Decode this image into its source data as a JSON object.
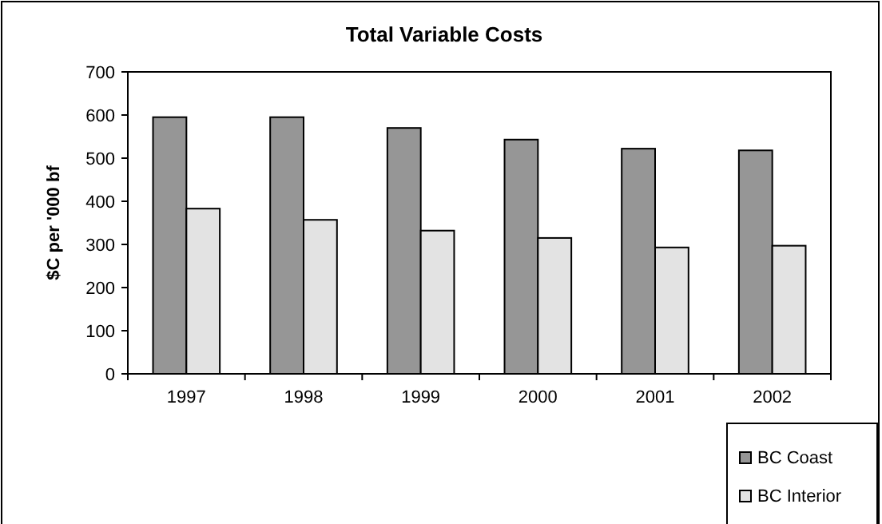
{
  "chart_data": {
    "type": "bar",
    "title": "Total Variable Costs",
    "ylabel": "$C per '000 bf",
    "categories": [
      "1997",
      "1998",
      "1999",
      "2000",
      "2001",
      "2002"
    ],
    "series": [
      {
        "name": "BC Coast",
        "color": "#969696",
        "values": [
          595,
          595,
          570,
          543,
          522,
          518
        ]
      },
      {
        "name": "BC Interior",
        "color": "#e3e3e3",
        "values": [
          383,
          357,
          332,
          315,
          293,
          297
        ]
      }
    ],
    "ylim": [
      0,
      700
    ],
    "yticks": [
      0,
      100,
      200,
      300,
      400,
      500,
      600,
      700
    ],
    "grid": false,
    "legend": "bottom right"
  }
}
